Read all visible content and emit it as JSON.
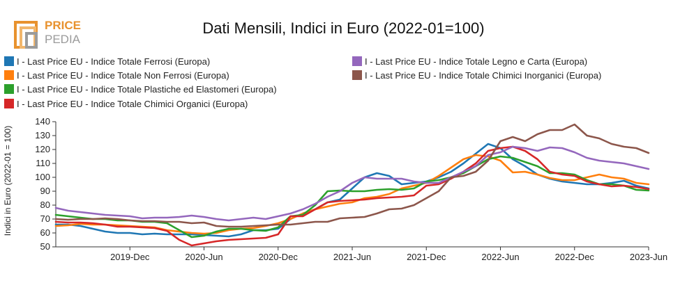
{
  "brand": {
    "line1": "PRICE",
    "line2": "PEDIA"
  },
  "colors": {
    "axis": "#333333",
    "grid": "#ffffff",
    "logo_orange": "#e8922e",
    "logo_gray": "#9b9b9b"
  },
  "chart_data": {
    "type": "line",
    "title": "Dati Mensili, Indici in Euro (2022-01=100)",
    "xlabel": "",
    "ylabel": "Indici in Euro (2022-01 = 100)",
    "ylim": [
      50,
      140
    ],
    "yticks": [
      50,
      60,
      70,
      80,
      90,
      100,
      110,
      120,
      130,
      140
    ],
    "x_start": "2019-06",
    "x_end": "2023-06",
    "xticks": [
      {
        "label": "2019-Dec",
        "index": 6
      },
      {
        "label": "2020-Jun",
        "index": 12
      },
      {
        "label": "2020-Dec",
        "index": 18
      },
      {
        "label": "2021-Jun",
        "index": 24
      },
      {
        "label": "2021-Dec",
        "index": 30
      },
      {
        "label": "2022-Jun",
        "index": 36
      },
      {
        "label": "2022-Dec",
        "index": 42
      },
      {
        "label": "2023-Jun",
        "index": 48
      }
    ],
    "series": [
      {
        "name": "I - Last Price EU - Indice Totale Ferrosi (Europa)",
        "color": "#1f77b4",
        "values": [
          66,
          66,
          65,
          63,
          61,
          60,
          60,
          59,
          59.5,
          59,
          59,
          59,
          58.5,
          58,
          57.5,
          59,
          62,
          62,
          63,
          70,
          74,
          77,
          82,
          84,
          92,
          100,
          103,
          101,
          95,
          96,
          97,
          100,
          104,
          110,
          117,
          124,
          121,
          113,
          108,
          102,
          99,
          97,
          96,
          95,
          95,
          96,
          97.5,
          94,
          92
        ]
      },
      {
        "name": "I - Last Price EU - Indice Totale Non Ferrosi (Europa)",
        "color": "#ff7f0e",
        "values": [
          65,
          65.5,
          66.5,
          66,
          66,
          65.5,
          65,
          64.5,
          64,
          62,
          61,
          60,
          59.5,
          60,
          62,
          63,
          63.5,
          65,
          67,
          70,
          74,
          77,
          79,
          81,
          82,
          85,
          86,
          88,
          92,
          94,
          96,
          101,
          107,
          113,
          116,
          115,
          112,
          103.5,
          104,
          102,
          99.5,
          98,
          98,
          100,
          102,
          100,
          99,
          96,
          95
        ]
      },
      {
        "name": "I - Last Price EU - Indice Totale Plastiche ed Elastomeri (Europa)",
        "color": "#2ca02c",
        "values": [
          73,
          72,
          71,
          70,
          70,
          69,
          69,
          68,
          68,
          67,
          62,
          57,
          58,
          61,
          63,
          63,
          62,
          61.5,
          64,
          72,
          73,
          80,
          90,
          90.5,
          90,
          90,
          91,
          91.5,
          91,
          92,
          97,
          98,
          100,
          103,
          108,
          113,
          115,
          114,
          111,
          108,
          103,
          103,
          102,
          98,
          95,
          95,
          94,
          91,
          90.5
        ]
      },
      {
        "name": "I - Last Price EU - Indice Totale Chimici Organici (Europa)",
        "color": "#d62728",
        "values": [
          68,
          67.5,
          67.5,
          67,
          66,
          64.5,
          64.5,
          64,
          63.5,
          61.5,
          55,
          51,
          52.5,
          54,
          55,
          55.5,
          56,
          56.5,
          59,
          72,
          72,
          77,
          82,
          83,
          83.5,
          84,
          85,
          85.5,
          86,
          87,
          94,
          95,
          99,
          104,
          110,
          119,
          121,
          122,
          119,
          113,
          104,
          102,
          101,
          97,
          95,
          93.5,
          94,
          93,
          91.5
        ]
      },
      {
        "name": "I - Last Price EU - Indice Totale Legno e Carta (Europa)",
        "color": "#9467bd",
        "values": [
          78,
          76,
          75,
          74,
          73,
          72.5,
          72,
          70.5,
          71,
          71,
          71.5,
          72.5,
          71.5,
          70,
          69,
          70,
          71,
          70,
          72,
          74,
          77,
          81,
          86,
          90,
          96,
          100,
          99,
          99,
          99,
          97,
          96,
          96,
          100,
          104,
          108,
          116,
          118,
          122,
          121,
          119,
          121.5,
          121,
          118,
          114,
          112,
          111,
          110,
          108,
          106
        ]
      },
      {
        "name": "I - Last Price EU - Indice Totale Chimici Inorganici (Europa)",
        "color": "#8c564b",
        "values": [
          70,
          69.5,
          70,
          70,
          70.5,
          70,
          69,
          68.5,
          68.5,
          68,
          68,
          67,
          67.5,
          65,
          64.5,
          64.5,
          65,
          65.5,
          66,
          66,
          67,
          68,
          68,
          70.5,
          71,
          71.5,
          74,
          77,
          77.5,
          80,
          85,
          90,
          100,
          101,
          104,
          112,
          126,
          129,
          126,
          131,
          134,
          134,
          138,
          130,
          128,
          124,
          122,
          121,
          117.5
        ]
      }
    ]
  }
}
